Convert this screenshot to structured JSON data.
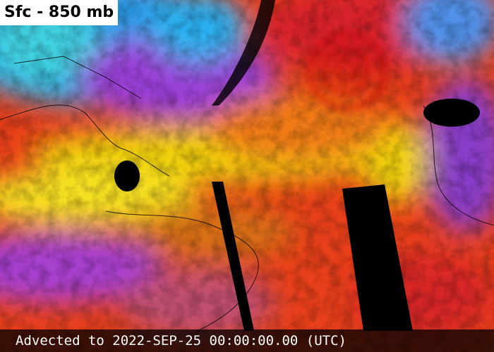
{
  "header": {
    "title": "Sfc - 850 mb"
  },
  "footer": {
    "timestamp": "Advected to 2022-SEP-25 00:00:00.00 (UTC)"
  }
}
